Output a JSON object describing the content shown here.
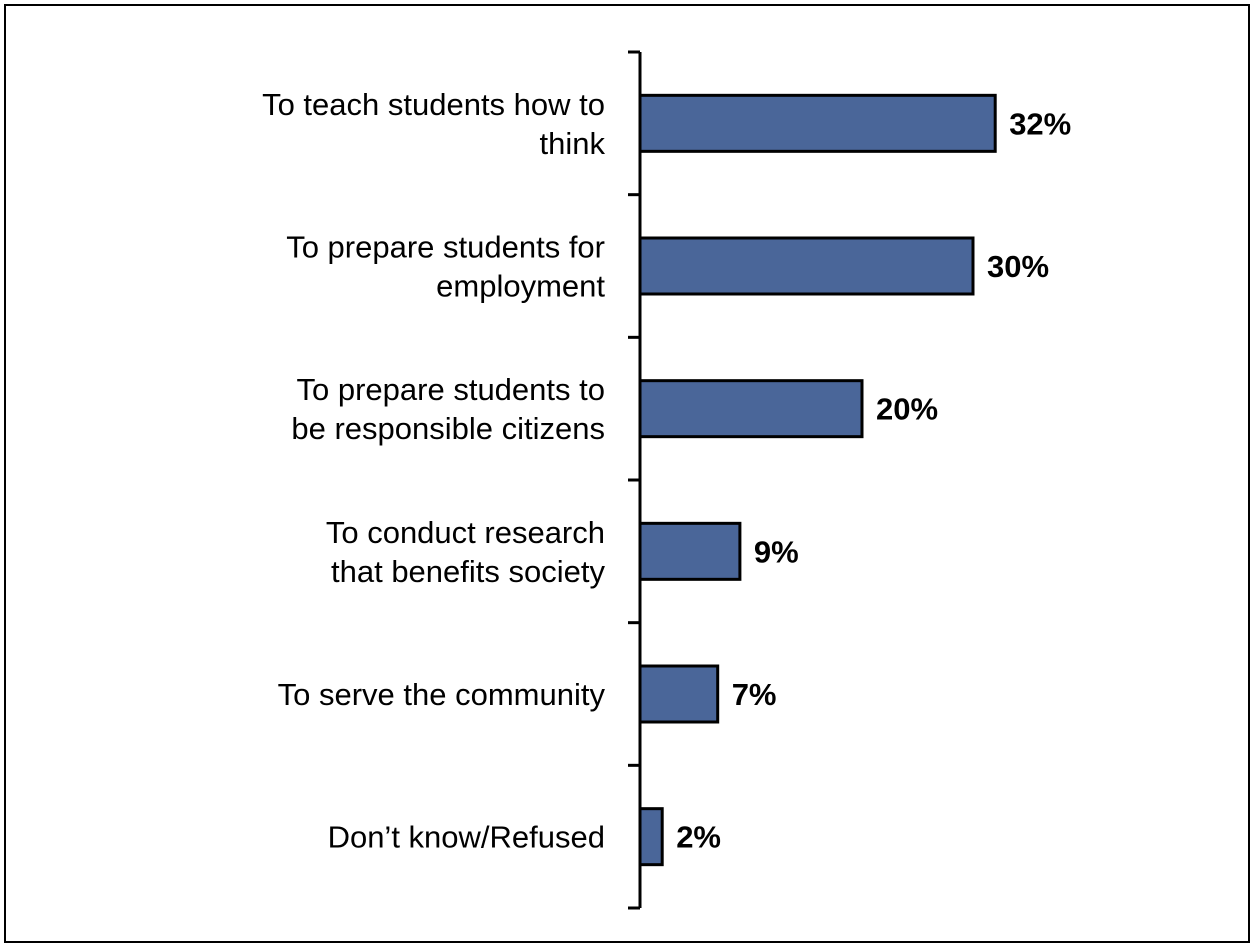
{
  "chart_data": {
    "type": "bar",
    "orientation": "horizontal",
    "categories": [
      [
        "To teach students how to",
        "think"
      ],
      [
        "To prepare students for",
        "employment"
      ],
      [
        "To prepare students to",
        "be responsible citizens"
      ],
      [
        "To conduct research",
        "that benefits society"
      ],
      [
        "To serve the community"
      ],
      [
        "Don’t know/Refused"
      ]
    ],
    "values": [
      32,
      30,
      20,
      9,
      7,
      2
    ],
    "value_labels": [
      "32%",
      "30%",
      "20%",
      "9%",
      "7%",
      "2%"
    ],
    "unit": "%",
    "title": "",
    "xlabel": "",
    "ylabel": "",
    "xlim": [
      0,
      100
    ],
    "grid": false,
    "legend": "none",
    "colors": {
      "bar_fill": "#4a6699",
      "bar_stroke": "#000000",
      "axis": "#000000",
      "text": "#000000",
      "frame": "#000000",
      "background": "#ffffff"
    }
  }
}
